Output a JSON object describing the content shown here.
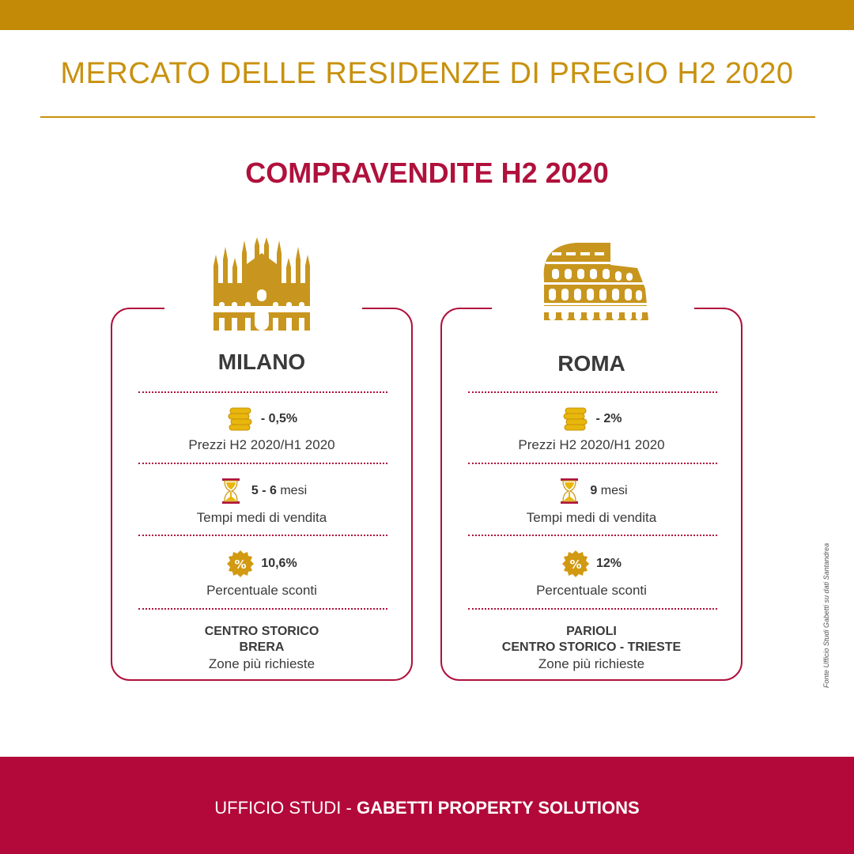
{
  "header": {
    "title": "MERCATO DELLE RESIDENZE DI PREGIO H2 2020",
    "section_title": "COMPRAVENDITE H2 2020"
  },
  "cards": [
    {
      "city": "MILANO",
      "icon": "duomo-icon",
      "price_value": "- 0,5%",
      "price_label": "Prezzi H2 2020/H1 2020",
      "time_value": "5 - 6",
      "time_unit": "mesi",
      "time_label": "Tempi medi di vendita",
      "discount_value": "10,6%",
      "discount_label": "Percentuale sconti",
      "zones": [
        "CENTRO STORICO",
        "BRERA"
      ],
      "zones_label": "Zone più richieste"
    },
    {
      "city": "ROMA",
      "icon": "colosseum-icon",
      "price_value": "- 2%",
      "price_label": "Prezzi H2 2020/H1 2020",
      "time_value": "9",
      "time_unit": "mesi",
      "time_label": "Tempi medi di vendita",
      "discount_value": "12%",
      "discount_label": "Percentuale sconti",
      "zones": [
        "PARIOLI",
        "CENTRO STORICO - TRIESTE"
      ],
      "zones_label": "Zone più richieste"
    }
  ],
  "source_note": "Fonte Ufficio Studi Gabetti su dati Santandrea",
  "footer": {
    "prefix": "UFFICIO STUDI - ",
    "brand": "GABETTI PROPERTY SOLUTIONS"
  },
  "colors": {
    "gold": "#c8910e",
    "crimson": "#b0113c",
    "footer_bg": "#b3093a"
  }
}
